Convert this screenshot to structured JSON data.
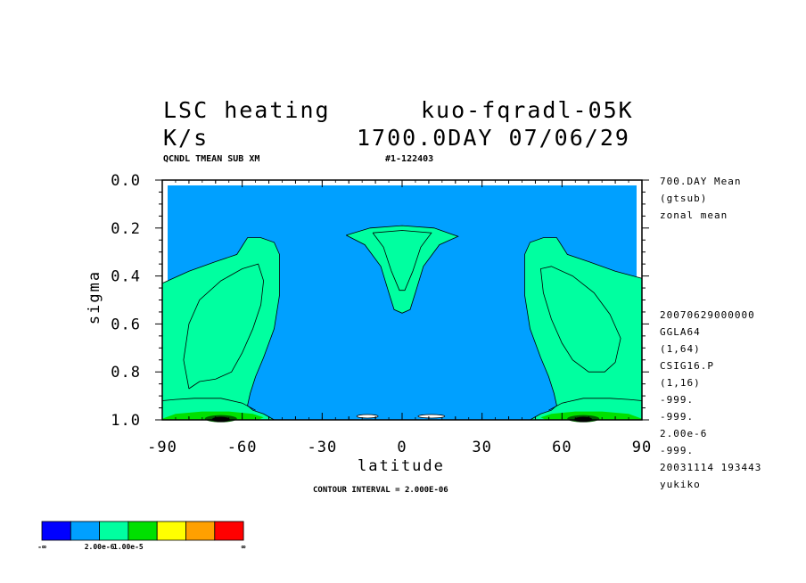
{
  "header": {
    "title_left": "LSC heating",
    "title_right": "kuo-fqradl-05K",
    "units": "K/s",
    "date": "1700.0DAY 07/06/29",
    "sub_left": "QCNDL TMEAN SUB XM",
    "sub_right": "#1-122403"
  },
  "side_info_top": [
    "700.DAY Mean",
    "(gtsub)",
    "zonal mean"
  ],
  "side_info_bottom": [
    "20070629000000",
    "GGLA64",
    "(1,64)",
    "CSIG16.P",
    "(1,16)",
    "-999.",
    "-999.",
    "2.00e-6",
    "-999.",
    "20031114 193443",
    "yukiko"
  ],
  "footer": {
    "contour_interval": "CONTOUR INTERVAL = 2.000E-06"
  },
  "colorbar": {
    "colors": [
      "#0000ff",
      "#00a0ff",
      "#00ffa0",
      "#00e000",
      "#ffff00",
      "#ffa000",
      "#ff0000"
    ],
    "labels": [
      "-∞",
      "2.00e-6",
      "1.00e-5",
      "∞"
    ]
  },
  "chart_data": {
    "type": "contour",
    "xlabel": "latitude",
    "ylabel": "sigma",
    "xlim": [
      -90,
      90
    ],
    "ylim": [
      1.0,
      0.0
    ],
    "x_ticks": [
      -90,
      -60,
      -30,
      0,
      30,
      60,
      90
    ],
    "x_tick_labels": [
      "-90",
      "-60",
      "-30",
      "0",
      "30",
      "60",
      "90"
    ],
    "y_ticks": [
      0.0,
      0.2,
      0.4,
      0.6,
      0.8,
      1.0
    ],
    "y_tick_labels": [
      "0.0",
      "0.2",
      "0.4",
      "0.6",
      "0.8",
      "1.0"
    ],
    "contour_interval": 2e-06,
    "background_fill": "#00a0ff",
    "regions": [
      {
        "name": "SH storm-track band",
        "fill": "#00ffa0",
        "outline": [
          [
            -90,
            0.43
          ],
          [
            -80,
            0.38
          ],
          [
            -70,
            0.34
          ],
          [
            -62,
            0.31
          ],
          [
            -58,
            0.24
          ],
          [
            -53,
            0.24
          ],
          [
            -48,
            0.26
          ],
          [
            -46,
            0.31
          ],
          [
            -46,
            0.48
          ],
          [
            -48,
            0.62
          ],
          [
            -52,
            0.74
          ],
          [
            -55,
            0.82
          ],
          [
            -57,
            0.89
          ],
          [
            -58,
            0.94
          ],
          [
            -56,
            0.96
          ],
          [
            -52,
            0.975
          ],
          [
            -48,
            1.0
          ],
          [
            -90,
            1.0
          ]
        ]
      },
      {
        "name": "NH storm-track band",
        "fill": "#00ffa0",
        "outline": [
          [
            90,
            0.41
          ],
          [
            80,
            0.38
          ],
          [
            70,
            0.34
          ],
          [
            62,
            0.31
          ],
          [
            58,
            0.24
          ],
          [
            53,
            0.24
          ],
          [
            48,
            0.26
          ],
          [
            46,
            0.31
          ],
          [
            46,
            0.48
          ],
          [
            48,
            0.62
          ],
          [
            52,
            0.74
          ],
          [
            55,
            0.82
          ],
          [
            57,
            0.89
          ],
          [
            58,
            0.94
          ],
          [
            56,
            0.96
          ],
          [
            52,
            0.975
          ],
          [
            48,
            1.0
          ],
          [
            90,
            1.0
          ]
        ]
      },
      {
        "name": "tropical upper maximum",
        "fill": "#00ffa0",
        "outline": [
          [
            -21,
            0.23
          ],
          [
            -12,
            0.2
          ],
          [
            0,
            0.19
          ],
          [
            12,
            0.2
          ],
          [
            21,
            0.235
          ],
          [
            14,
            0.27
          ],
          [
            8,
            0.36
          ],
          [
            5,
            0.47
          ],
          [
            3,
            0.54
          ],
          [
            0,
            0.555
          ],
          [
            -3,
            0.54
          ],
          [
            -5,
            0.47
          ],
          [
            -8,
            0.36
          ],
          [
            -14,
            0.27
          ]
        ]
      },
      {
        "name": "SH surface maximum",
        "fill": "#00e000",
        "outline": [
          [
            -90,
            0.995
          ],
          [
            -85,
            0.975
          ],
          [
            -75,
            0.965
          ],
          [
            -65,
            0.965
          ],
          [
            -56,
            0.975
          ],
          [
            -52,
            0.99
          ],
          [
            -54,
            1.0
          ],
          [
            -90,
            1.0
          ]
        ]
      },
      {
        "name": "NH surface maximum",
        "fill": "#00e000",
        "outline": [
          [
            54,
            1.0
          ],
          [
            52,
            0.99
          ],
          [
            56,
            0.975
          ],
          [
            65,
            0.965
          ],
          [
            75,
            0.965
          ],
          [
            85,
            0.975
          ],
          [
            90,
            0.995
          ],
          [
            90,
            1.0
          ]
        ]
      }
    ],
    "contour_lines": [
      [
        [
          -90,
          0.43
        ],
        [
          -80,
          0.38
        ],
        [
          -70,
          0.34
        ],
        [
          -62,
          0.31
        ],
        [
          -58,
          0.24
        ],
        [
          -53,
          0.24
        ],
        [
          -48,
          0.26
        ],
        [
          -46,
          0.31
        ],
        [
          -46,
          0.48
        ],
        [
          -48,
          0.62
        ],
        [
          -52,
          0.74
        ],
        [
          -55,
          0.82
        ],
        [
          -57,
          0.89
        ],
        [
          -58,
          0.94
        ],
        [
          -56,
          0.96
        ],
        [
          -52,
          0.975
        ],
        [
          -48,
          1.0
        ]
      ],
      [
        [
          -80,
          0.87
        ],
        [
          -82,
          0.75
        ],
        [
          -80,
          0.6
        ],
        [
          -76,
          0.5
        ],
        [
          -68,
          0.42
        ],
        [
          -60,
          0.37
        ],
        [
          -54,
          0.35
        ],
        [
          -52,
          0.42
        ],
        [
          -53,
          0.52
        ],
        [
          -56,
          0.62
        ],
        [
          -60,
          0.72
        ],
        [
          -64,
          0.8
        ],
        [
          -70,
          0.83
        ],
        [
          -76,
          0.84
        ],
        [
          -80,
          0.87
        ]
      ],
      [
        [
          90,
          0.41
        ],
        [
          80,
          0.38
        ],
        [
          70,
          0.34
        ],
        [
          62,
          0.31
        ],
        [
          58,
          0.24
        ],
        [
          53,
          0.24
        ],
        [
          48,
          0.26
        ],
        [
          46,
          0.31
        ],
        [
          46,
          0.48
        ],
        [
          48,
          0.62
        ],
        [
          52,
          0.74
        ],
        [
          55,
          0.82
        ],
        [
          57,
          0.89
        ],
        [
          58,
          0.94
        ],
        [
          56,
          0.96
        ],
        [
          52,
          0.975
        ],
        [
          48,
          1.0
        ]
      ],
      [
        [
          80,
          0.76
        ],
        [
          82,
          0.66
        ],
        [
          78,
          0.56
        ],
        [
          72,
          0.47
        ],
        [
          64,
          0.4
        ],
        [
          56,
          0.36
        ],
        [
          52,
          0.37
        ],
        [
          53,
          0.47
        ],
        [
          56,
          0.58
        ],
        [
          60,
          0.68
        ],
        [
          64,
          0.75
        ],
        [
          70,
          0.8
        ],
        [
          76,
          0.8
        ],
        [
          80,
          0.76
        ]
      ],
      [
        [
          -21,
          0.23
        ],
        [
          -12,
          0.2
        ],
        [
          0,
          0.19
        ],
        [
          12,
          0.2
        ],
        [
          21,
          0.235
        ],
        [
          14,
          0.27
        ],
        [
          8,
          0.36
        ],
        [
          5,
          0.47
        ],
        [
          3,
          0.54
        ],
        [
          0,
          0.555
        ],
        [
          -3,
          0.54
        ],
        [
          -5,
          0.47
        ],
        [
          -8,
          0.36
        ],
        [
          -14,
          0.27
        ],
        [
          -21,
          0.23
        ]
      ],
      [
        [
          -11,
          0.22
        ],
        [
          0,
          0.21
        ],
        [
          11,
          0.22
        ],
        [
          7,
          0.28
        ],
        [
          4,
          0.38
        ],
        [
          1,
          0.46
        ],
        [
          -1,
          0.46
        ],
        [
          -4,
          0.38
        ],
        [
          -7,
          0.28
        ],
        [
          -11,
          0.22
        ]
      ],
      [
        [
          -92,
          0.92
        ],
        [
          -85,
          0.915
        ],
        [
          -78,
          0.91
        ],
        [
          -68,
          0.91
        ],
        [
          -60,
          0.93
        ],
        [
          -55,
          0.96
        ]
      ],
      [
        [
          92,
          0.92
        ],
        [
          85,
          0.915
        ],
        [
          78,
          0.91
        ],
        [
          68,
          0.91
        ],
        [
          60,
          0.93
        ],
        [
          55,
          0.96
        ]
      ]
    ],
    "small_features": [
      {
        "lat": -13,
        "sigma": 0.985,
        "rx": 4,
        "ry": 0.008
      },
      {
        "lat": 11,
        "sigma": 0.985,
        "rx": 5,
        "ry": 0.008
      }
    ]
  }
}
